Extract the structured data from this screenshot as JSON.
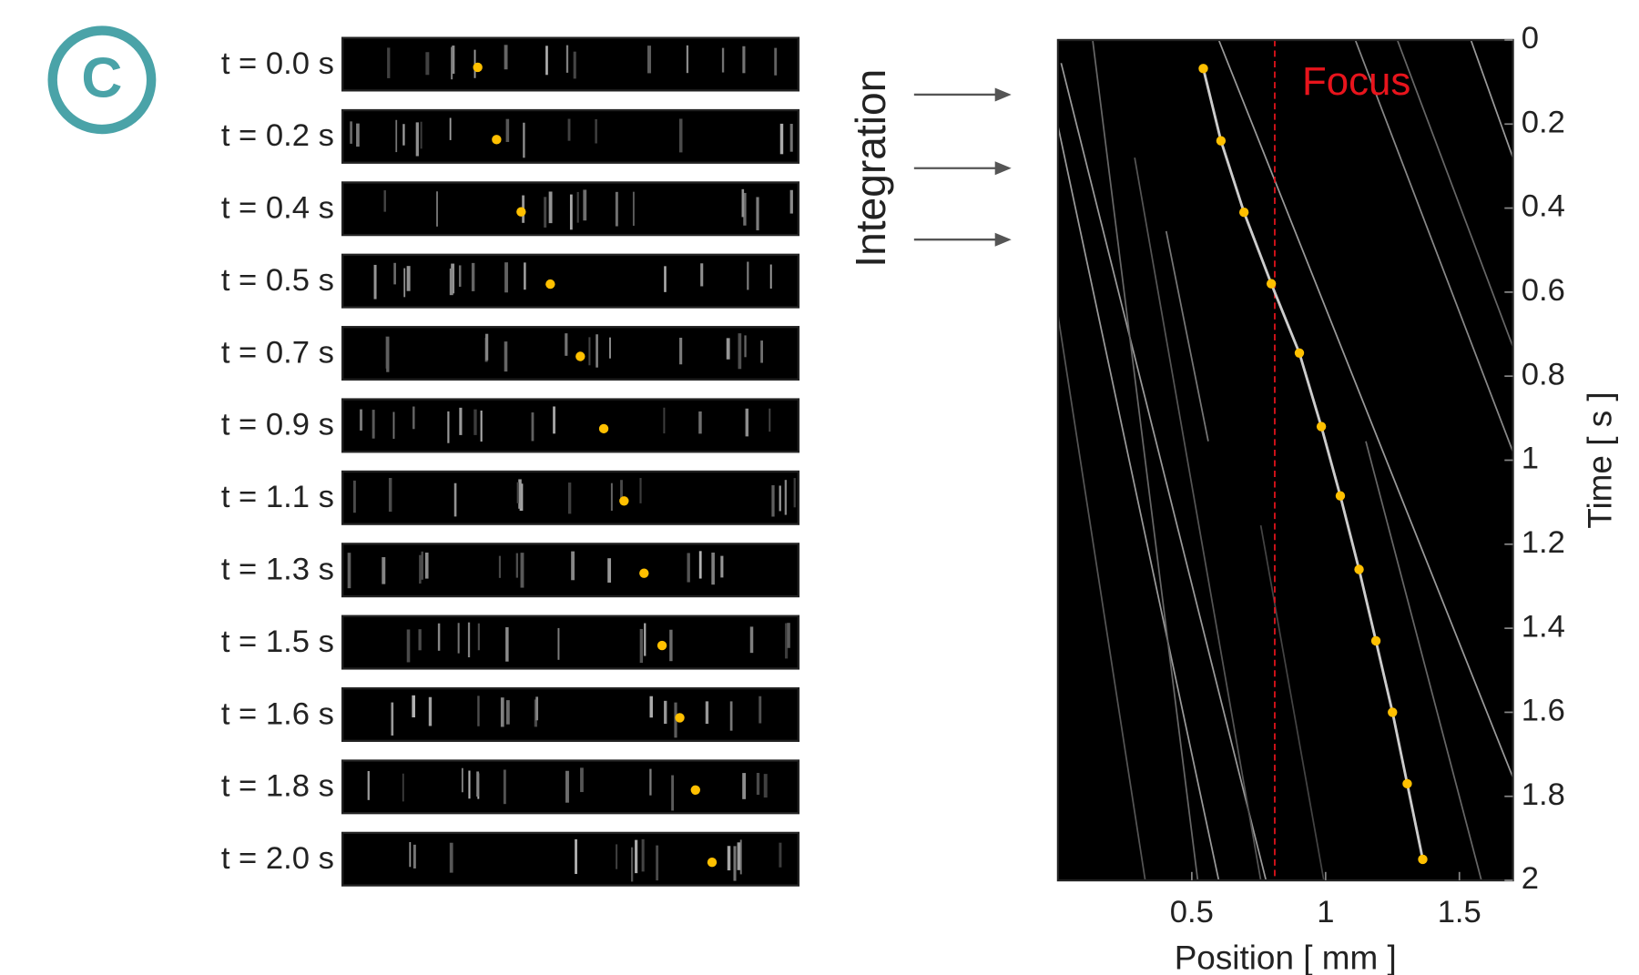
{
  "panel_label": "C",
  "integration_label": "Integration",
  "frames": {
    "labels": [
      "t = 0.0 s",
      "t = 0.2 s",
      "t = 0.4 s",
      "t = 0.5 s",
      "t = 0.7 s",
      "t = 0.9 s",
      "t = 1.1 s",
      "t = 1.3 s",
      "t = 1.5 s",
      "t = 1.6 s",
      "t = 1.8 s",
      "t = 2.0 s"
    ]
  },
  "chart_data": {
    "type": "scatter",
    "x_label": "Position [ mm ]",
    "y_label": "Time [ s ]",
    "annotation": "Focus",
    "focus_x": 0.81,
    "focus_color": "#e8141c",
    "series": [
      {
        "color": "#ffc000",
        "x": [
          0.543,
          0.609,
          0.695,
          0.797,
          0.902,
          0.984,
          1.055,
          1.125,
          1.188,
          1.25,
          1.305,
          1.363
        ],
        "values": [
          0.068,
          0.24,
          0.41,
          0.58,
          0.745,
          0.92,
          1.085,
          1.26,
          1.43,
          1.6,
          1.77,
          1.95
        ]
      }
    ],
    "xlim": [
      0,
      1.7
    ],
    "ylim": [
      0,
      2
    ],
    "xticks": [
      0.5,
      1,
      1.5
    ],
    "yticks": [
      0,
      0.2,
      0.4,
      0.6,
      0.8,
      1,
      1.2,
      1.4,
      1.6,
      1.8,
      2
    ]
  }
}
